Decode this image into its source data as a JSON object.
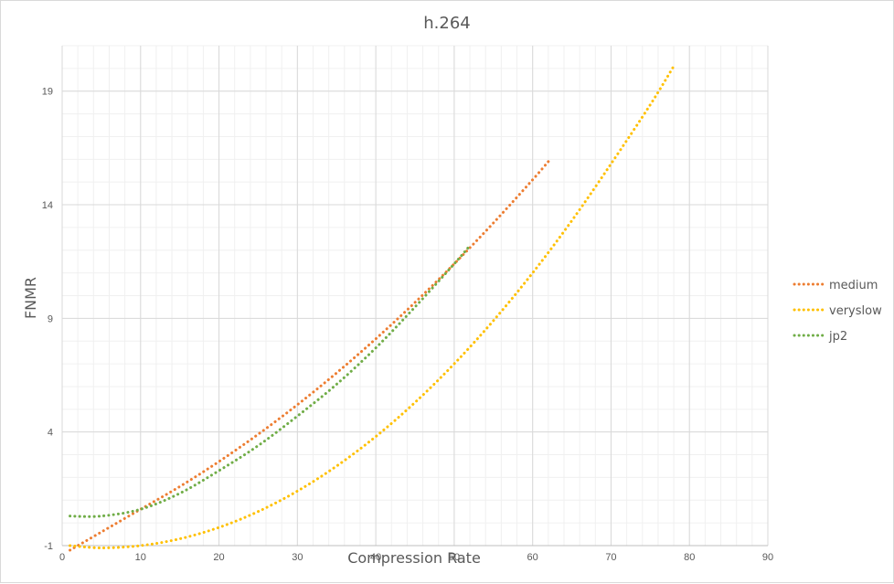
{
  "chart_data": {
    "type": "line",
    "title": "h.264",
    "xlabel": "Compression Rate",
    "ylabel": "FNMR",
    "xlim": [
      0,
      90
    ],
    "ylim": [
      -1,
      21
    ],
    "x_ticks": [
      0,
      10,
      20,
      30,
      40,
      50,
      60,
      70,
      80,
      90
    ],
    "y_ticks": [
      -1,
      4,
      9,
      14,
      19
    ],
    "grid": true,
    "minor_grid": true,
    "legend_position": "right",
    "series": [
      {
        "name": "medium",
        "color": "#ED7D31",
        "style": "dotted",
        "points": [
          [
            1,
            -1.2
          ],
          [
            5,
            -0.4
          ],
          [
            10,
            0.6
          ],
          [
            15,
            1.6
          ],
          [
            20,
            2.7
          ],
          [
            25,
            3.9
          ],
          [
            30,
            5.2
          ],
          [
            35,
            6.6
          ],
          [
            40,
            8.1
          ],
          [
            45,
            9.7
          ],
          [
            50,
            11.4
          ],
          [
            55,
            13.2
          ],
          [
            60,
            15.1
          ],
          [
            62,
            15.9
          ]
        ]
      },
      {
        "name": "veryslow",
        "color": "#FFC000",
        "style": "dotted",
        "points": [
          [
            1,
            -1.0
          ],
          [
            5,
            -1.1
          ],
          [
            10,
            -1.0
          ],
          [
            15,
            -0.7
          ],
          [
            20,
            -0.2
          ],
          [
            25,
            0.5
          ],
          [
            30,
            1.4
          ],
          [
            35,
            2.5
          ],
          [
            40,
            3.8
          ],
          [
            45,
            5.3
          ],
          [
            50,
            7.0
          ],
          [
            55,
            8.9
          ],
          [
            60,
            11.0
          ],
          [
            65,
            13.3
          ],
          [
            70,
            15.8
          ],
          [
            75,
            18.4
          ],
          [
            78,
            20.1
          ]
        ]
      },
      {
        "name": "jp2",
        "color": "#70AD47",
        "style": "dotted",
        "points": [
          [
            1,
            0.3
          ],
          [
            5,
            0.3
          ],
          [
            10,
            0.6
          ],
          [
            15,
            1.3
          ],
          [
            20,
            2.3
          ],
          [
            25,
            3.4
          ],
          [
            30,
            4.7
          ],
          [
            35,
            6.1
          ],
          [
            40,
            7.7
          ],
          [
            45,
            9.5
          ],
          [
            50,
            11.4
          ],
          [
            52,
            12.2
          ]
        ]
      }
    ]
  }
}
